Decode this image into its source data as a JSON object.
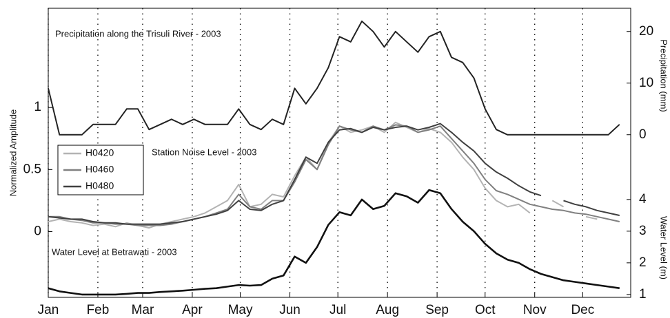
{
  "chart_data": {
    "type": "line",
    "annotations": [
      "Precipitation along the Trisuli River - 2003",
      "Station Noise Level - 2003",
      "Water Level at Betrawati - 2003"
    ],
    "ylabel": "Normalized Amplitude",
    "y2label": "Precipitation (mm)",
    "y3label": "Water Level (m)",
    "x": [
      1,
      8,
      15,
      22,
      29,
      36,
      43,
      50,
      57,
      64,
      71,
      78,
      85,
      92,
      99,
      106,
      113,
      120,
      127,
      134,
      141,
      148,
      155,
      162,
      169,
      176,
      183,
      190,
      197,
      204,
      211,
      218,
      225,
      232,
      239,
      246,
      253,
      260,
      267,
      274,
      281,
      288,
      295,
      302,
      309,
      316,
      323,
      330,
      337,
      344,
      351,
      358
    ],
    "xlim": [
      1,
      365
    ],
    "xticks": [
      {
        "value": 1,
        "label": "Jan"
      },
      {
        "value": 32,
        "label": "Feb"
      },
      {
        "value": 60,
        "label": "Mar"
      },
      {
        "value": 91,
        "label": "Apr"
      },
      {
        "value": 121,
        "label": "May"
      },
      {
        "value": 152,
        "label": "Jun"
      },
      {
        "value": 182,
        "label": "Jul"
      },
      {
        "value": 213,
        "label": "Aug"
      },
      {
        "value": 244,
        "label": "Sep"
      },
      {
        "value": 274,
        "label": "Oct"
      },
      {
        "value": 305,
        "label": "Nov"
      },
      {
        "value": 335,
        "label": "Dec"
      }
    ],
    "ylim": [
      -0.53,
      1.8
    ],
    "yticks": [
      0,
      0.5,
      1
    ],
    "y2lim": [
      -31.5,
      24.5
    ],
    "y2ticks": [
      0,
      10,
      20
    ],
    "y3lim": [
      0.91,
      10.04
    ],
    "y3ticks": [
      1,
      2,
      3,
      4
    ],
    "grid": "x-dotted",
    "legend": "left",
    "series": [
      {
        "axis": "y2",
        "color": "#222222",
        "values": [
          9,
          0,
          0,
          0,
          2,
          2,
          2,
          5,
          5,
          1,
          2,
          3,
          2,
          3,
          2,
          2,
          2,
          5,
          2,
          1,
          3,
          2,
          9,
          6,
          9,
          13,
          19,
          18,
          22,
          20,
          17,
          20,
          18,
          16,
          19,
          20,
          15,
          14,
          11,
          5,
          1,
          0,
          0,
          0,
          0,
          0,
          0,
          0,
          0,
          0,
          0,
          2
        ]
      },
      {
        "name": "H0420",
        "color": "#b3b3b3",
        "values": [
          0.08,
          0.1,
          0.08,
          0.07,
          0.05,
          0.06,
          0.04,
          0.07,
          0.05,
          0.03,
          0.06,
          0.08,
          0.1,
          0.12,
          0.15,
          0.2,
          0.25,
          0.38,
          0.2,
          0.22,
          0.3,
          0.28,
          0.45,
          0.6,
          0.5,
          0.72,
          0.85,
          0.8,
          0.82,
          0.85,
          0.8,
          0.88,
          0.84,
          0.8,
          0.83,
          0.8,
          0.72,
          0.6,
          0.5,
          0.35,
          0.25,
          0.2,
          0.22,
          0.15,
          null,
          0.25,
          0.2,
          null,
          0.12,
          0.1,
          null,
          0.05
        ]
      },
      {
        "name": "H0460",
        "color": "#808080",
        "values": [
          0.12,
          0.12,
          0.1,
          0.09,
          0.07,
          0.07,
          0.06,
          0.06,
          0.05,
          0.05,
          0.05,
          0.06,
          0.08,
          0.1,
          0.12,
          0.15,
          0.18,
          0.3,
          0.2,
          0.18,
          0.25,
          0.25,
          0.4,
          0.58,
          0.5,
          0.7,
          0.85,
          0.82,
          0.8,
          0.85,
          0.82,
          0.86,
          0.85,
          0.8,
          0.82,
          0.85,
          0.75,
          0.65,
          0.55,
          0.42,
          0.33,
          0.3,
          0.26,
          0.22,
          0.2,
          0.18,
          0.17,
          0.15,
          0.14,
          0.12,
          0.1,
          0.08
        ]
      },
      {
        "name": "H0480",
        "color": "#404040",
        "values": [
          0.12,
          0.11,
          0.1,
          0.1,
          0.08,
          0.07,
          0.07,
          0.06,
          0.06,
          0.06,
          0.06,
          0.07,
          0.08,
          0.1,
          0.12,
          0.14,
          0.17,
          0.25,
          0.18,
          0.17,
          0.22,
          0.25,
          0.42,
          0.6,
          0.55,
          0.72,
          0.82,
          0.83,
          0.8,
          0.84,
          0.82,
          0.84,
          0.85,
          0.82,
          0.84,
          0.87,
          0.8,
          0.72,
          0.65,
          0.55,
          0.48,
          0.43,
          0.37,
          0.32,
          0.29,
          null,
          0.25,
          0.22,
          0.2,
          0.17,
          0.15,
          0.13
        ]
      },
      {
        "axis": "y3",
        "color": "#111111",
        "values": [
          1.2,
          1.1,
          1.05,
          1.0,
          1.0,
          1.0,
          1.0,
          1.02,
          1.05,
          1.05,
          1.08,
          1.1,
          1.12,
          1.15,
          1.18,
          1.2,
          1.25,
          1.3,
          1.28,
          1.3,
          1.5,
          1.6,
          2.2,
          2.0,
          2.5,
          3.2,
          3.6,
          3.5,
          4.0,
          3.7,
          3.8,
          4.2,
          4.1,
          3.9,
          4.3,
          4.2,
          3.7,
          3.3,
          3.0,
          2.6,
          2.3,
          2.1,
          2.0,
          1.8,
          1.65,
          1.55,
          1.45,
          1.4,
          1.35,
          1.3,
          1.25,
          1.2
        ]
      }
    ]
  }
}
